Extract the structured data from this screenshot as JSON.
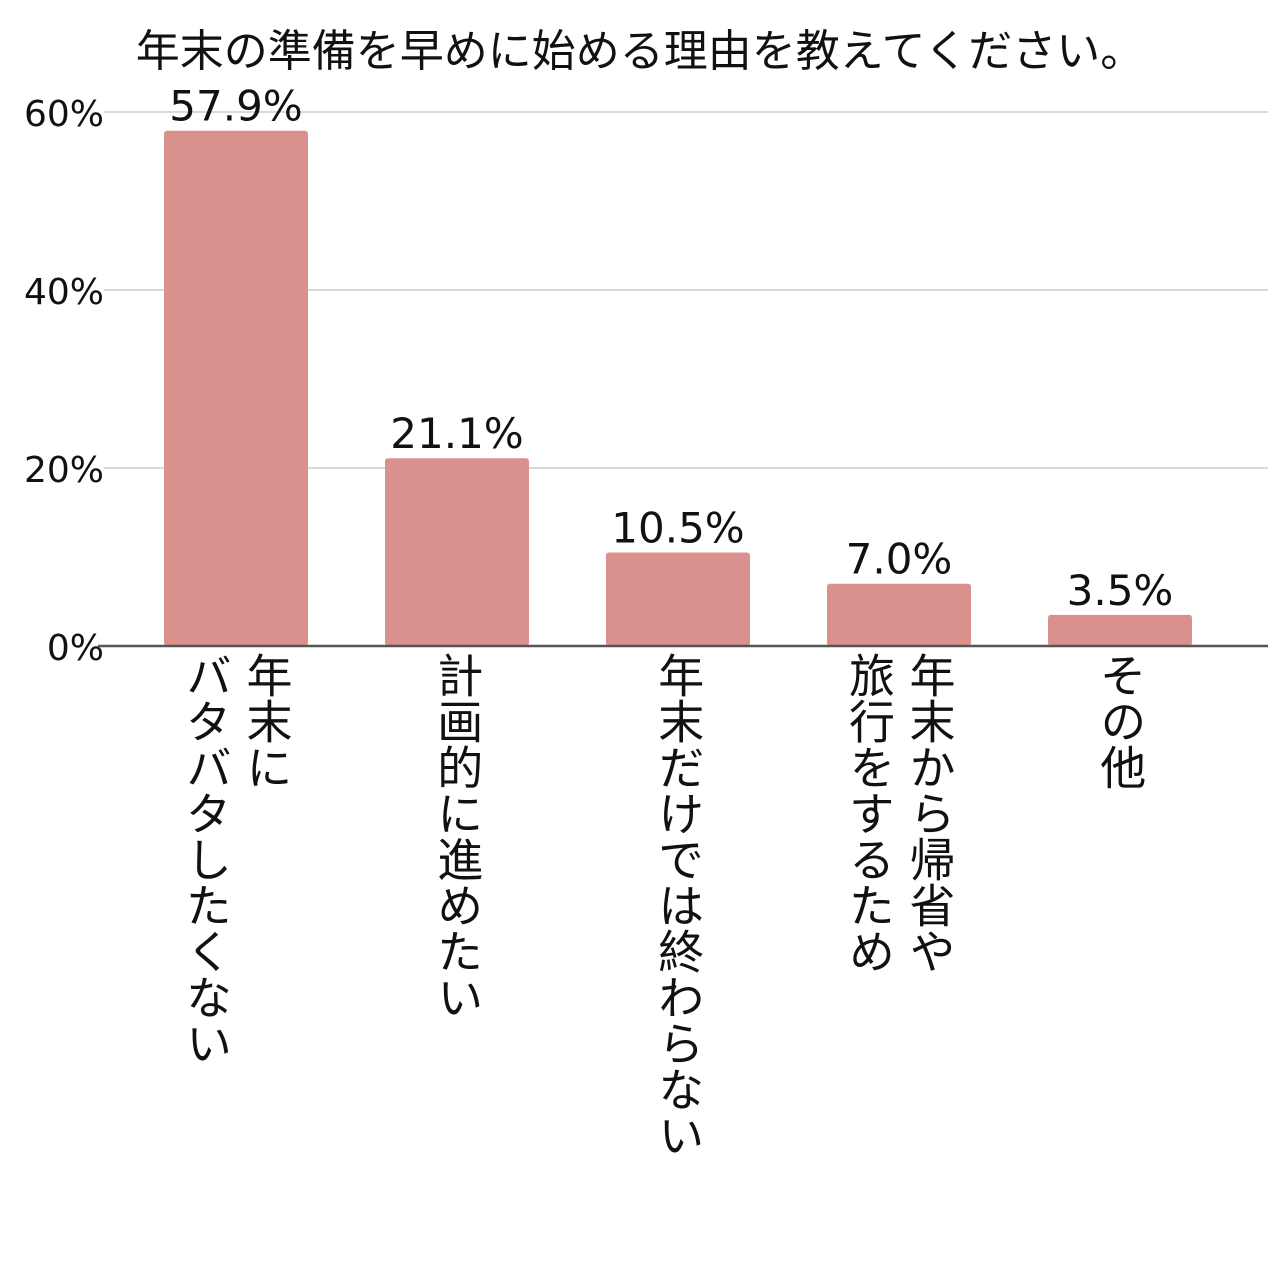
{
  "chart_data": {
    "type": "bar",
    "title": "年末の準備を早めに始める理由を教えてください。",
    "xlabel": "",
    "ylabel": "",
    "categories": [
      [
        "年末に",
        "バタバタしたくない"
      ],
      [
        "計画的に進めたい"
      ],
      [
        "年末だけでは終わらない"
      ],
      [
        "年末から帰省や",
        "旅行をするため"
      ],
      [
        "その他"
      ]
    ],
    "values": [
      57.9,
      21.1,
      10.5,
      7.0,
      3.5
    ],
    "data_labels": [
      "57.9%",
      "21.1%",
      "10.5%",
      "7.0%",
      "3.5%"
    ],
    "ylim": [
      0,
      60
    ],
    "yticks": [
      0,
      20,
      40,
      60
    ],
    "ytick_labels": [
      "0%",
      "20%",
      "40%",
      "60%"
    ],
    "grid": true,
    "legend": "none",
    "colors": {
      "bar": "#da918d",
      "grid": "#d9d9d9",
      "axis": "#555555",
      "text": "#111111"
    }
  }
}
